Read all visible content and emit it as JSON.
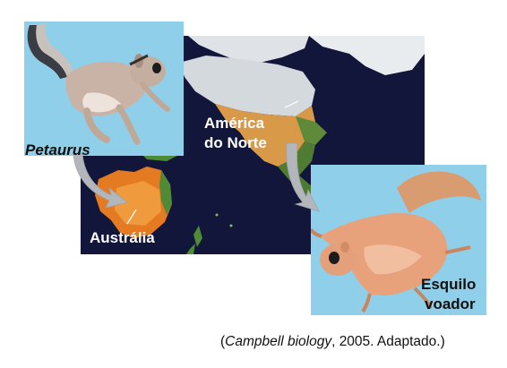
{
  "labels": {
    "petaurus": "Petaurus",
    "australia": "Austrália",
    "north_america_line1": "América",
    "north_america_line2": "do Norte",
    "squirrel_line1": "Esquilo",
    "squirrel_line2": "voador"
  },
  "caption": {
    "open": "(",
    "title": "Campbell biology",
    "rest": ", 2005. Adaptado.)"
  },
  "colors": {
    "ocean": "#12163a",
    "inset_background": "#8fcfe9",
    "arrow": "#b3b7bc",
    "australia": "#e47a22",
    "north_america": "#e6a44a"
  }
}
